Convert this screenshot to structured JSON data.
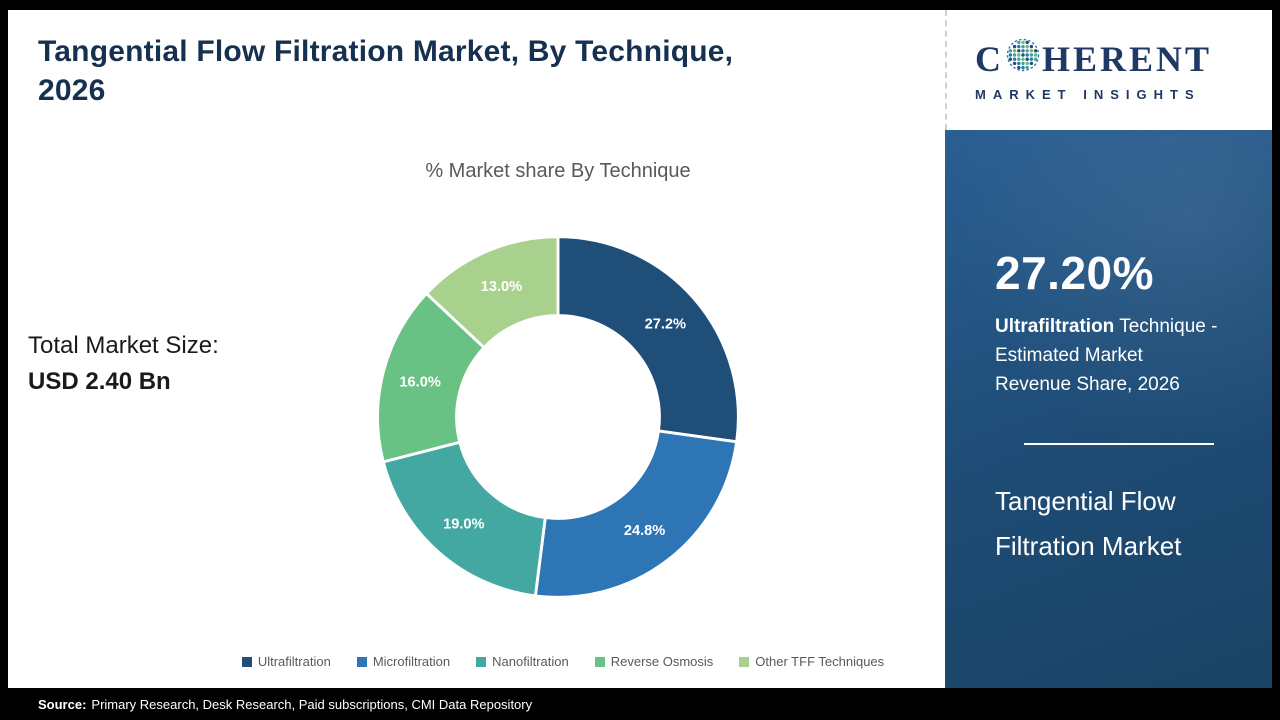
{
  "page": {
    "title_line1": "Tangential Flow Filtration Market, By Technique,",
    "title_line2": "2026"
  },
  "logo": {
    "brand_part1": "C",
    "brand_part2": "HERENT",
    "brand_sub": "MARKET INSIGHTS"
  },
  "totals": {
    "label": "Total Market Size:",
    "value": "USD 2.40 Bn"
  },
  "chart_data": {
    "type": "pie",
    "donut": true,
    "title": "% Market share By Technique",
    "categories": [
      "Ultrafiltration",
      "Microfiltration",
      "Nanofiltration",
      "Reverse Osmosis",
      "Other TFF Techniques"
    ],
    "values": [
      27.2,
      24.8,
      19.0,
      16.0,
      13.0
    ],
    "slice_labels": [
      "27.2%",
      "24.8%",
      "19.0%",
      "16.0%",
      "13.0%"
    ],
    "colors": [
      "#1f4e79",
      "#2e75b6",
      "#44a8a2",
      "#69c183",
      "#a9d18e"
    ],
    "legend_position": "bottom",
    "start_angle_deg": 0,
    "direction": "clockwise"
  },
  "sidebar": {
    "stat_value": "27.20%",
    "desc_bold": "Ultrafiltration",
    "desc_rest": " Technique -",
    "desc_line2": "Estimated Market",
    "desc_line3": "Revenue Share, 2026",
    "market_line1": "Tangential Flow",
    "market_line2": "Filtration Market"
  },
  "footer": {
    "source_label": "Source:",
    "source_text": "Primary Research, Desk Research, Paid subscriptions, CMI Data Repository"
  }
}
